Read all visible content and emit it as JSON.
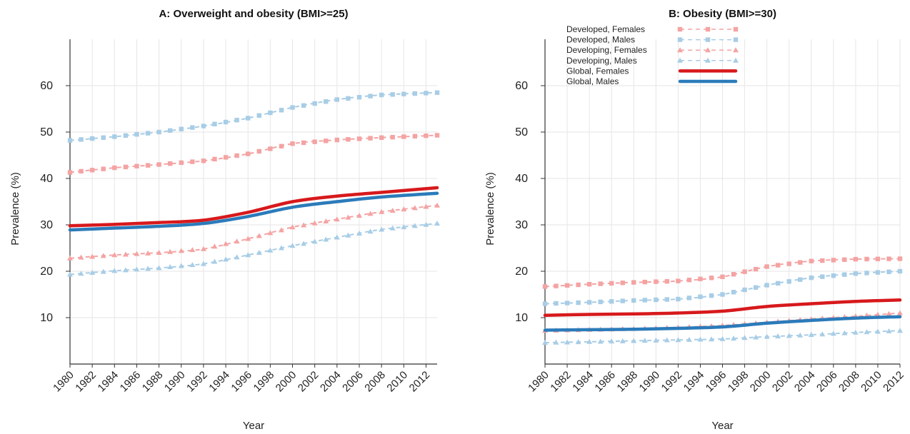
{
  "colors": {
    "developed_female": "#f4a3a3",
    "developed_male": "#a8cde6",
    "developing_female": "#f4a3a3",
    "developing_male": "#a8cde6",
    "global_female": "#d7191c",
    "global_male": "#2b7bba",
    "grid": "#e6e6e6"
  },
  "chart_data": [
    {
      "type": "line",
      "title": "A: Overweight and obesity (BMI>=25)",
      "xlabel": "Year",
      "ylabel": "Prevalence (%)",
      "xlim": [
        1980,
        2013
      ],
      "ylim": [
        0,
        70
      ],
      "yticks": [
        10,
        20,
        30,
        40,
        50,
        60
      ],
      "xticks": [
        "1980",
        "1982",
        "1984",
        "1986",
        "1988",
        "1990",
        "1992",
        "1994",
        "1996",
        "1998",
        "2000",
        "2002",
        "2004",
        "2006",
        "2008",
        "2010",
        "2012"
      ],
      "grid": true,
      "x": [
        1980,
        1984,
        1988,
        1992,
        1996,
        2000,
        2004,
        2008,
        2013
      ],
      "series": [
        {
          "name": "Developed, Females",
          "style": "dashed-square",
          "values": [
            41.3,
            42.3,
            43.0,
            43.8,
            45.3,
            47.5,
            48.3,
            48.8,
            49.3
          ]
        },
        {
          "name": "Developed, Males",
          "style": "dashed-square",
          "values": [
            48.2,
            49.0,
            50.0,
            51.3,
            53.0,
            55.3,
            57.0,
            58.0,
            58.5
          ]
        },
        {
          "name": "Developing, Females",
          "style": "dashed-triangle",
          "values": [
            22.8,
            23.5,
            24.0,
            24.8,
            27.0,
            29.5,
            31.2,
            32.8,
            34.2
          ]
        },
        {
          "name": "Developing, Males",
          "style": "dashed-triangle",
          "values": [
            19.3,
            20.1,
            20.7,
            21.6,
            23.5,
            25.5,
            27.3,
            29.0,
            30.3
          ]
        },
        {
          "name": "Global, Females",
          "style": "solid",
          "values": [
            29.8,
            30.1,
            30.5,
            31.0,
            32.7,
            35.0,
            36.2,
            37.0,
            38.0
          ]
        },
        {
          "name": "Global, Males",
          "style": "solid",
          "values": [
            28.9,
            29.3,
            29.7,
            30.3,
            31.8,
            33.8,
            35.0,
            36.0,
            36.8
          ]
        }
      ]
    },
    {
      "type": "line",
      "title": "B: Obesity (BMI>=30)",
      "xlabel": "Year",
      "ylabel": "Prevalence (%)",
      "xlim": [
        1980,
        2012
      ],
      "ylim": [
        0,
        70
      ],
      "yticks": [
        10,
        20,
        30,
        40,
        50,
        60
      ],
      "xticks": [
        "1980",
        "1982",
        "1984",
        "1986",
        "1988",
        "1990",
        "1992",
        "1994",
        "1996",
        "1998",
        "2000",
        "2002",
        "2004",
        "2006",
        "2008",
        "2010",
        "2012"
      ],
      "grid": true,
      "legend": "top-left",
      "x": [
        1980,
        1984,
        1988,
        1992,
        1996,
        2000,
        2004,
        2008,
        2012
      ],
      "series": [
        {
          "name": "Developed, Females",
          "style": "dashed-square",
          "values": [
            16.7,
            17.2,
            17.6,
            17.9,
            18.8,
            21.0,
            22.2,
            22.6,
            22.7
          ]
        },
        {
          "name": "Developed, Males",
          "style": "dashed-square",
          "values": [
            13.0,
            13.3,
            13.7,
            14.0,
            15.0,
            17.0,
            18.6,
            19.5,
            20.0
          ]
        },
        {
          "name": "Developing, Females",
          "style": "dashed-triangle",
          "values": [
            7.2,
            7.4,
            7.6,
            7.9,
            8.3,
            9.0,
            9.7,
            10.3,
            11.0
          ]
        },
        {
          "name": "Developing, Males",
          "style": "dashed-triangle",
          "values": [
            4.6,
            4.8,
            5.0,
            5.2,
            5.4,
            5.9,
            6.3,
            6.8,
            7.2
          ]
        },
        {
          "name": "Global, Females",
          "style": "solid",
          "values": [
            10.5,
            10.7,
            10.8,
            11.0,
            11.4,
            12.4,
            13.0,
            13.5,
            13.8
          ]
        },
        {
          "name": "Global, Males",
          "style": "solid",
          "values": [
            7.3,
            7.4,
            7.5,
            7.7,
            8.0,
            8.8,
            9.4,
            9.9,
            10.2
          ]
        }
      ]
    }
  ]
}
